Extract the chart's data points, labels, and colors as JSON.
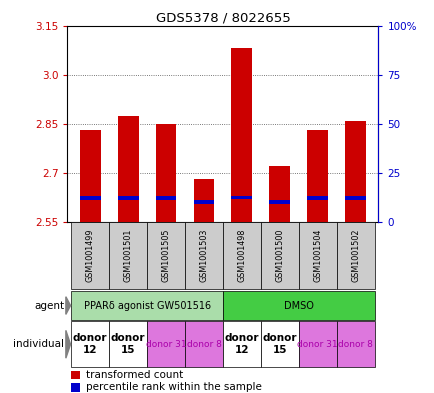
{
  "title": "GDS5378 / 8022655",
  "samples": [
    "GSM1001499",
    "GSM1001501",
    "GSM1001505",
    "GSM1001503",
    "GSM1001498",
    "GSM1001500",
    "GSM1001504",
    "GSM1001502"
  ],
  "red_values": [
    2.83,
    2.875,
    2.85,
    2.68,
    3.08,
    2.72,
    2.83,
    2.86
  ],
  "blue_values": [
    2.622,
    2.622,
    2.622,
    2.612,
    2.625,
    2.612,
    2.622,
    2.622
  ],
  "base_value": 2.55,
  "ylim_min": 2.55,
  "ylim_max": 3.15,
  "yticks_left": [
    2.55,
    2.7,
    2.85,
    3.0,
    3.15
  ],
  "yticks_right": [
    0,
    25,
    50,
    75,
    100
  ],
  "ytick_labels_right": [
    "0",
    "25",
    "50",
    "75",
    "100%"
  ],
  "agent_groups": [
    {
      "label": "PPARδ agonist GW501516",
      "start": 0,
      "end": 4,
      "color": "#aaddaa"
    },
    {
      "label": "DMSO",
      "start": 4,
      "end": 8,
      "color": "#44cc44"
    }
  ],
  "individual_groups": [
    {
      "label": "donor\n12",
      "start": 0,
      "end": 1,
      "color": "#ffffff",
      "fontsize": 7.5,
      "bold": true
    },
    {
      "label": "donor\n15",
      "start": 1,
      "end": 2,
      "color": "#ffffff",
      "fontsize": 7.5,
      "bold": true
    },
    {
      "label": "donor 31",
      "start": 2,
      "end": 3,
      "color": "#dd77dd",
      "fontsize": 6.5,
      "bold": false
    },
    {
      "label": "donor 8",
      "start": 3,
      "end": 4,
      "color": "#dd77dd",
      "fontsize": 6.5,
      "bold": false
    },
    {
      "label": "donor\n12",
      "start": 4,
      "end": 5,
      "color": "#ffffff",
      "fontsize": 7.5,
      "bold": true
    },
    {
      "label": "donor\n15",
      "start": 5,
      "end": 6,
      "color": "#ffffff",
      "fontsize": 7.5,
      "bold": true
    },
    {
      "label": "donor 31",
      "start": 6,
      "end": 7,
      "color": "#dd77dd",
      "fontsize": 6.5,
      "bold": false
    },
    {
      "label": "donor 8",
      "start": 7,
      "end": 8,
      "color": "#dd77dd",
      "fontsize": 6.5,
      "bold": false
    }
  ],
  "bar_width": 0.55,
  "blue_bar_height": 0.012,
  "red_color": "#cc0000",
  "blue_color": "#0000cc",
  "grid_color": "#000000",
  "left_tick_color": "#cc0000",
  "right_tick_color": "#0000cc",
  "bg_color": "#ffffff"
}
